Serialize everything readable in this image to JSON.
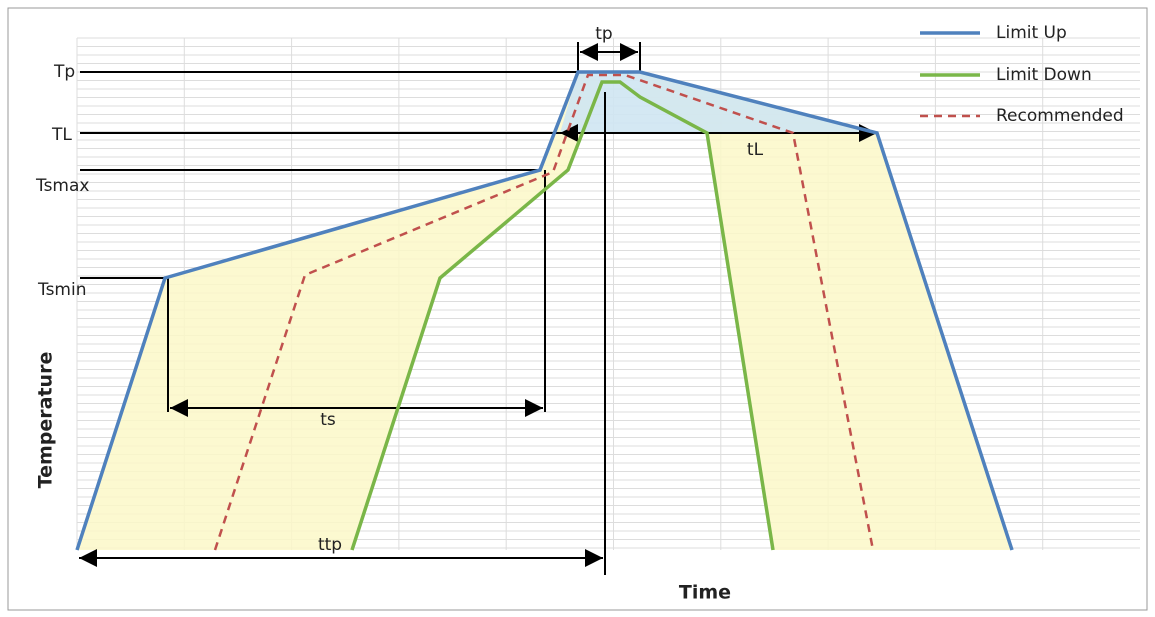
{
  "y_labels": {
    "tp": "Tp",
    "tl": "TL",
    "tsmax": "Tsmax",
    "tsmin": "Tsmin"
  },
  "axis": {
    "y": "Temperature",
    "x": "Time"
  },
  "intervals": {
    "tp": "tp",
    "tl": "tL",
    "ts": "ts",
    "ttp": "ttp"
  },
  "legend": [
    "Limit Up",
    "Limit Down",
    "Recommended"
  ]
}
